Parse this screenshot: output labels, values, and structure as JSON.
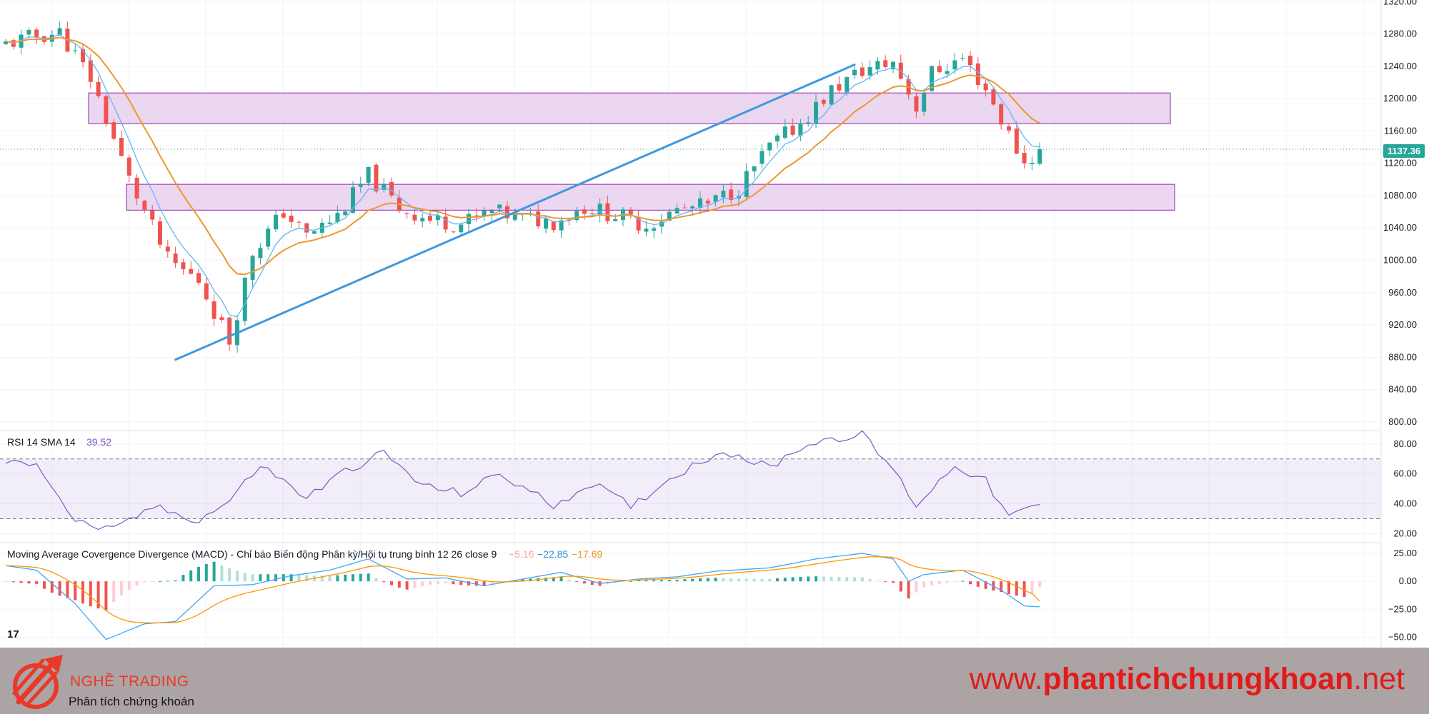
{
  "price_badge": "1137.36",
  "rsi_legend": {
    "name": "RSI 14 SMA 14",
    "value": "39.52"
  },
  "macd_legend": {
    "name": "Moving Average Covergence Divergence (MACD) - Chỉ báo Biến động Phân kỳ/Hội tụ trung bình 12 26 close 9",
    "hist": "−5.16",
    "macd": "−22.85",
    "signal": "−17.69"
  },
  "footer": {
    "brand_name": "NGHỀ TRADING",
    "tagline": "Phân tích chứng khoán",
    "url_prefix": "www.",
    "url_main": "phantichchungkhoan",
    "url_suffix": ".net"
  },
  "tv_logo": "17",
  "colors": {
    "up": "#26a69a",
    "down": "#ef5350",
    "trend": "#3d99e0",
    "ma_fast": "#64b5f6",
    "ma_slow": "#f0962d",
    "zone_fill": "#e1bee7",
    "zone_stroke": "#8e24aa",
    "rsi": "#7e57c2",
    "macd": "#42a5f5",
    "signal": "#ff9800"
  },
  "chart_data": [
    {
      "type": "candlestick",
      "title": "",
      "y_ticks": [
        800,
        840,
        880,
        920,
        960,
        1000,
        1040,
        1080,
        1120,
        1160,
        1200,
        1240,
        1280,
        1320
      ],
      "ylim": [
        792,
        1322
      ],
      "last_price": 1137.36,
      "bars": 135,
      "shape_points": [
        [
          0,
          1265
        ],
        [
          4,
          1275
        ],
        [
          8,
          1282
        ],
        [
          12,
          1225
        ],
        [
          17,
          1100
        ],
        [
          22,
          1000
        ],
        [
          26,
          975
        ],
        [
          30,
          900
        ],
        [
          33,
          1010
        ],
        [
          37,
          1060
        ],
        [
          40,
          1030
        ],
        [
          44,
          1055
        ],
        [
          48,
          1105
        ],
        [
          52,
          1065
        ],
        [
          56,
          1050
        ],
        [
          60,
          1045
        ],
        [
          64,
          1060
        ],
        [
          68,
          1052
        ],
        [
          72,
          1048
        ],
        [
          76,
          1066
        ],
        [
          80,
          1056
        ],
        [
          84,
          1043
        ],
        [
          88,
          1062
        ],
        [
          92,
          1068
        ],
        [
          96,
          1090
        ],
        [
          100,
          1140
        ],
        [
          104,
          1170
        ],
        [
          108,
          1210
        ],
        [
          112,
          1235
        ],
        [
          116,
          1245
        ],
        [
          119,
          1190
        ],
        [
          121,
          1232
        ],
        [
          125,
          1250
        ],
        [
          128,
          1212
        ],
        [
          131,
          1155
        ],
        [
          133,
          1120
        ],
        [
          135,
          1136
        ]
      ],
      "support_zone": [
        1062,
        1094
      ],
      "resistance_zone": [
        1169,
        1207
      ],
      "trendline": [
        [
          22,
          877
        ],
        [
          110,
          1242
        ]
      ],
      "ma_periods": [
        5,
        13
      ]
    },
    {
      "type": "line",
      "name": "RSI 14 SMA 14",
      "y_ticks": [
        20,
        40,
        60,
        80
      ],
      "ylim": [
        15,
        88
      ],
      "bands": [
        30,
        70
      ],
      "shape_points": [
        [
          0,
          66
        ],
        [
          5,
          68
        ],
        [
          10,
          28
        ],
        [
          15,
          22
        ],
        [
          20,
          38
        ],
        [
          26,
          29
        ],
        [
          30,
          42
        ],
        [
          34,
          66
        ],
        [
          40,
          44
        ],
        [
          45,
          62
        ],
        [
          50,
          74
        ],
        [
          55,
          52
        ],
        [
          60,
          47
        ],
        [
          65,
          60
        ],
        [
          72,
          39
        ],
        [
          77,
          54
        ],
        [
          82,
          38
        ],
        [
          88,
          60
        ],
        [
          94,
          76
        ],
        [
          100,
          64
        ],
        [
          104,
          78
        ],
        [
          108,
          84
        ],
        [
          112,
          86
        ],
        [
          116,
          63
        ],
        [
          119,
          39
        ],
        [
          124,
          66
        ],
        [
          128,
          55
        ],
        [
          131,
          31
        ],
        [
          135,
          39.52
        ]
      ]
    },
    {
      "type": "bar+line",
      "name": "Moving Average Covergence Divergence (MACD)",
      "y_ticks": [
        -50,
        -25,
        0,
        25
      ],
      "ylim": [
        -58,
        32
      ],
      "macd_points": [
        [
          0,
          15
        ],
        [
          5,
          10
        ],
        [
          10,
          -20
        ],
        [
          14,
          -52
        ],
        [
          19,
          -38
        ],
        [
          23,
          -36
        ],
        [
          28,
          -4
        ],
        [
          33,
          -3
        ],
        [
          38,
          5
        ],
        [
          43,
          10
        ],
        [
          48,
          20
        ],
        [
          53,
          2
        ],
        [
          58,
          3
        ],
        [
          63,
          -4
        ],
        [
          68,
          2
        ],
        [
          73,
          8
        ],
        [
          78,
          -2
        ],
        [
          83,
          2
        ],
        [
          88,
          4
        ],
        [
          93,
          9
        ],
        [
          100,
          12
        ],
        [
          106,
          20
        ],
        [
          112,
          25
        ],
        [
          116,
          20
        ],
        [
          118,
          0
        ],
        [
          120,
          6
        ],
        [
          125,
          10
        ],
        [
          130,
          -8
        ],
        [
          133,
          -22
        ],
        [
          135,
          -22.85
        ]
      ],
      "signal_smoothing": 9,
      "last": {
        "hist": -5.16,
        "macd": -22.85,
        "signal": -17.69
      }
    }
  ]
}
